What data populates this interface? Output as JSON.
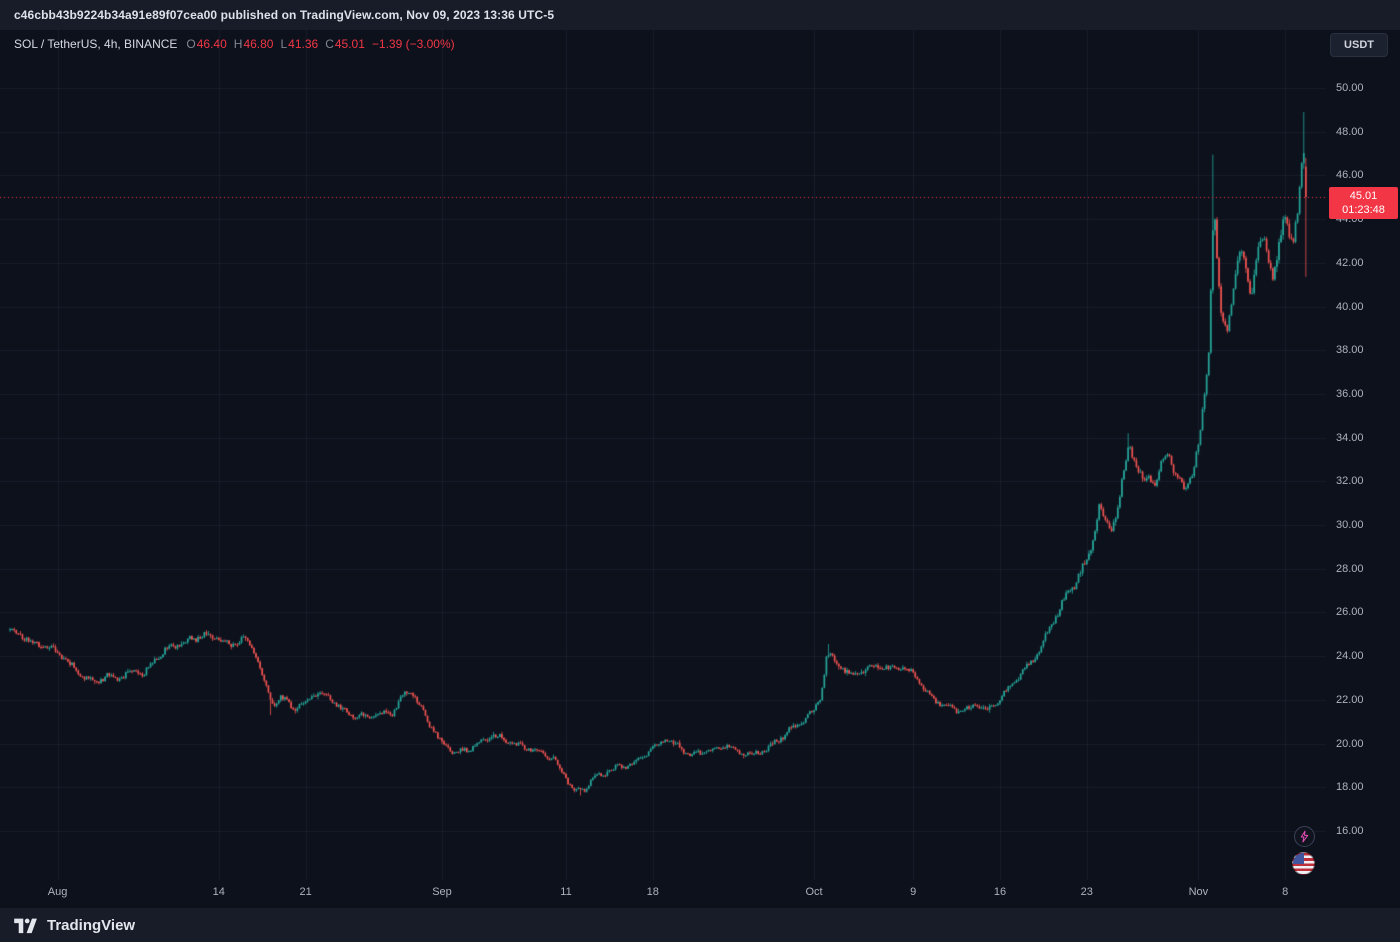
{
  "theme": {
    "background": "#0c111c",
    "panel": "#171c28",
    "grid": "rgba(151,166,196,0.08)",
    "text_primary": "#d1d4dc",
    "text_secondary": "#aeb2bc",
    "muted": "#82858f",
    "up_color": "#26a69a",
    "down_color": "#ef5350",
    "accent_red": "#f23645"
  },
  "attribution": {
    "text": "c46cbb43b9224b34a91e89f07cea00 published on TradingView.com, Nov 09, 2023 13:36 UTC-5"
  },
  "header": {
    "symbol_title": "SOL / TetherUS, 4h, BINANCE",
    "ohlc": {
      "o_label": "O",
      "o_value": "46.40",
      "h_label": "H",
      "h_value": "46.80",
      "l_label": "L",
      "l_value": "41.36",
      "c_label": "C",
      "c_value": "45.01",
      "change_value": "−1.39 (−3.00%)"
    }
  },
  "toolbar": {
    "currency_label": "USDT"
  },
  "price_label": {
    "price": "45.01",
    "countdown": "01:23:48"
  },
  "footer": {
    "brand": "TradingView"
  },
  "chart_data": {
    "type": "candlestick",
    "symbol": "SOL/USDT",
    "exchange": "BINANCE",
    "interval": "4h",
    "up_color": "#26a69a",
    "down_color": "#ef5350",
    "grid": true,
    "legend_position": "top-left",
    "current_price": 45.01,
    "ylim": [
      13.8,
      52.6
    ],
    "y_ticks": [
      "50.00",
      "48.00",
      "46.00",
      "44.00",
      "42.00",
      "40.00",
      "38.00",
      "36.00",
      "34.00",
      "32.00",
      "30.00",
      "28.00",
      "26.00",
      "24.00",
      "22.00",
      "20.00",
      "18.00",
      "16.00"
    ],
    "x_labels": [
      {
        "text": "Aug",
        "t": 4
      },
      {
        "text": "14",
        "t": 17
      },
      {
        "text": "21",
        "t": 24
      },
      {
        "text": "Sep",
        "t": 35
      },
      {
        "text": "11",
        "t": 45
      },
      {
        "text": "18",
        "t": 52
      },
      {
        "text": "Oct",
        "t": 65
      },
      {
        "text": "9",
        "t": 73
      },
      {
        "text": "16",
        "t": 80
      },
      {
        "text": "23",
        "t": 87
      },
      {
        "text": "Nov",
        "t": 96
      },
      {
        "text": "8",
        "t": 103
      }
    ],
    "candles_per_day": 6,
    "days_total": 104.83,
    "seed": 11,
    "anchors": [
      [
        0,
        25.2
      ],
      [
        1,
        25.0
      ],
      [
        2,
        24.6
      ],
      [
        3,
        24.5
      ],
      [
        4,
        24.2
      ],
      [
        5,
        23.6
      ],
      [
        6,
        23.1
      ],
      [
        7,
        22.8
      ],
      [
        8,
        23.1
      ],
      [
        9,
        23.0
      ],
      [
        10,
        23.3
      ],
      [
        11,
        23.2
      ],
      [
        12,
        24.0
      ],
      [
        13,
        24.4
      ],
      [
        14,
        24.6
      ],
      [
        15,
        24.8
      ],
      [
        16,
        25.0
      ],
      [
        17,
        24.8
      ],
      [
        18,
        24.5
      ],
      [
        19,
        24.9
      ],
      [
        20,
        24.1
      ],
      [
        20.7,
        22.7
      ],
      [
        21.3,
        21.8
      ],
      [
        22,
        22.1
      ],
      [
        23,
        21.6
      ],
      [
        24,
        21.9
      ],
      [
        25,
        22.4
      ],
      [
        26,
        22.1
      ],
      [
        27,
        21.5
      ],
      [
        28,
        21.3
      ],
      [
        29,
        21.2
      ],
      [
        30,
        21.3
      ],
      [
        31,
        21.4
      ],
      [
        32,
        22.3
      ],
      [
        32.6,
        22.4
      ],
      [
        33,
        21.9
      ],
      [
        34,
        20.9
      ],
      [
        35,
        20.0
      ],
      [
        36,
        19.6
      ],
      [
        37,
        19.7
      ],
      [
        38,
        20.0
      ],
      [
        39,
        20.4
      ],
      [
        40,
        20.2
      ],
      [
        41,
        19.9
      ],
      [
        42,
        19.8
      ],
      [
        43,
        19.6
      ],
      [
        44,
        19.3
      ],
      [
        45,
        18.4
      ],
      [
        45.7,
        17.8
      ],
      [
        46.5,
        17.9
      ],
      [
        47,
        18.3
      ],
      [
        48,
        18.6
      ],
      [
        49,
        18.9
      ],
      [
        50,
        19.0
      ],
      [
        51,
        19.3
      ],
      [
        52,
        19.8
      ],
      [
        53,
        20.2
      ],
      [
        54,
        19.9
      ],
      [
        55,
        19.5
      ],
      [
        56,
        19.6
      ],
      [
        57,
        19.7
      ],
      [
        58,
        19.9
      ],
      [
        59,
        19.6
      ],
      [
        60,
        19.5
      ],
      [
        61,
        19.7
      ],
      [
        62,
        20.1
      ],
      [
        63,
        20.6
      ],
      [
        64,
        21.0
      ],
      [
        65,
        21.5
      ],
      [
        65.6,
        22.3
      ],
      [
        66,
        23.9
      ],
      [
        66.4,
        24.0
      ],
      [
        67,
        23.6
      ],
      [
        68,
        23.1
      ],
      [
        69,
        23.3
      ],
      [
        70,
        23.6
      ],
      [
        71,
        23.4
      ],
      [
        72,
        23.5
      ],
      [
        73,
        23.2
      ],
      [
        74,
        22.4
      ],
      [
        75,
        21.9
      ],
      [
        76,
        21.7
      ],
      [
        77,
        21.4
      ],
      [
        78,
        21.8
      ],
      [
        79,
        21.5
      ],
      [
        80,
        22.1
      ],
      [
        81,
        22.7
      ],
      [
        82,
        23.4
      ],
      [
        83,
        24.1
      ],
      [
        84,
        25.2
      ],
      [
        85,
        26.4
      ],
      [
        86,
        27.3
      ],
      [
        87,
        28.4
      ],
      [
        87.5,
        29.3
      ],
      [
        88,
        31.0
      ],
      [
        88.5,
        30.1
      ],
      [
        89,
        29.8
      ],
      [
        89.5,
        30.9
      ],
      [
        90,
        32.3
      ],
      [
        90.4,
        33.8
      ],
      [
        91,
        32.8
      ],
      [
        91.5,
        31.9
      ],
      [
        92,
        32.4
      ],
      [
        92.5,
        31.8
      ],
      [
        93,
        32.8
      ],
      [
        93.5,
        33.4
      ],
      [
        94,
        32.6
      ],
      [
        94.5,
        31.9
      ],
      [
        95,
        31.6
      ],
      [
        95.5,
        32.4
      ],
      [
        96,
        33.6
      ],
      [
        96.3,
        34.9
      ],
      [
        96.6,
        36.6
      ],
      [
        96.9,
        38.5
      ],
      [
        97.1,
        43.2
      ],
      [
        97.3,
        44.4
      ],
      [
        97.5,
        42.0
      ],
      [
        97.8,
        39.8
      ],
      [
        98,
        39.4
      ],
      [
        98.3,
        38.9
      ],
      [
        98.6,
        40.2
      ],
      [
        99,
        41.3
      ],
      [
        99.3,
        42.3
      ],
      [
        99.6,
        42.5
      ],
      [
        100,
        41.3
      ],
      [
        100.3,
        40.6
      ],
      [
        100.6,
        41.8
      ],
      [
        101,
        42.8
      ],
      [
        101.3,
        43.2
      ],
      [
        101.6,
        42.2
      ],
      [
        102,
        41.4
      ],
      [
        102.3,
        42.0
      ],
      [
        102.6,
        43.1
      ],
      [
        103,
        44.3
      ],
      [
        103.3,
        43.4
      ],
      [
        103.6,
        42.9
      ],
      [
        104,
        44.1
      ],
      [
        104.3,
        46.3
      ],
      [
        104.5,
        47.0
      ],
      [
        104.83,
        45.0
      ]
    ],
    "spikes": [
      {
        "t": 21.2,
        "price": 21.3,
        "dir": "down"
      },
      {
        "t": 46.1,
        "price": 17.62,
        "dir": "down"
      },
      {
        "t": 66.2,
        "price": 24.55,
        "dir": "up"
      },
      {
        "t": 90.4,
        "price": 34.2,
        "dir": "up"
      },
      {
        "t": 97.2,
        "price": 46.95,
        "dir": "up"
      },
      {
        "t": 104.55,
        "price": 48.9,
        "dir": "up"
      }
    ],
    "last_candle": {
      "o": 46.4,
      "h": 46.8,
      "l": 41.36,
      "c": 45.01
    }
  }
}
